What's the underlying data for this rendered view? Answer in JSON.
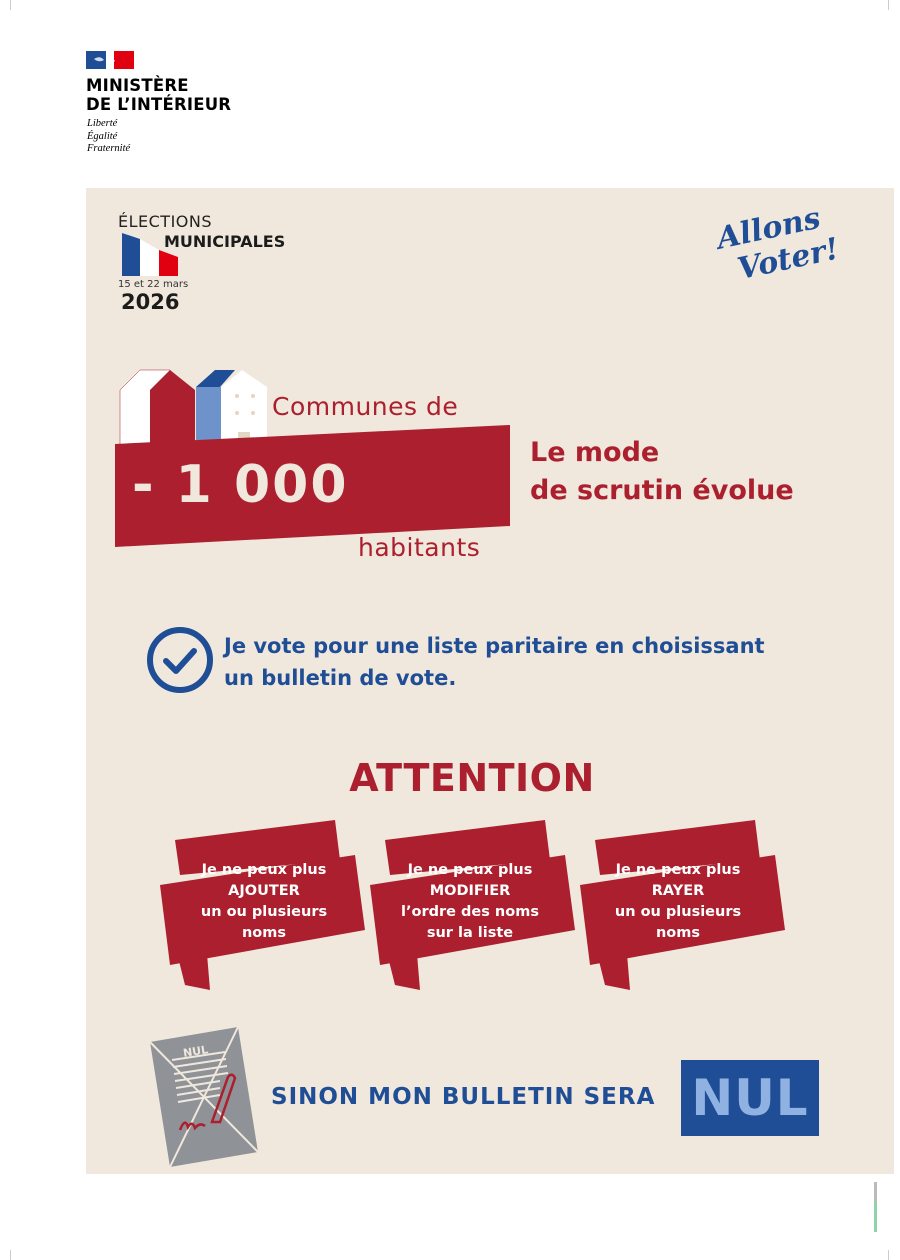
{
  "header": {
    "ministry_line1": "MINISTÈRE",
    "ministry_line2": "DE L’INTÉRIEUR",
    "motto": [
      "Liberté",
      "Égalité",
      "Fraternité"
    ]
  },
  "election": {
    "line1": "ÉLECTIONS",
    "line2": "MUNICIPALES",
    "dates": "15 et 22 mars",
    "year": "2026"
  },
  "slogan": [
    "Allons",
    "Voter!"
  ],
  "communes": {
    "prefix": "Communes de",
    "number": "- 1 000",
    "suffix": "habitants"
  },
  "headline": [
    "Le mode",
    "de scrutin évolue"
  ],
  "vote_statement": [
    "Je vote pour une liste paritaire en choisissant",
    "un bulletin de vote."
  ],
  "attention": "ATTENTION",
  "rules": [
    {
      "lines": [
        "Je ne peux plus",
        "AJOUTER",
        "un ou plusieurs",
        "noms"
      ]
    },
    {
      "lines": [
        "Je ne peux plus",
        "MODIFIER",
        "l’ordre des noms",
        "sur la liste"
      ]
    },
    {
      "lines": [
        "Je ne peux plus",
        "RAYER",
        "un ou plusieurs",
        "noms"
      ]
    }
  ],
  "ballot_label": "NUL",
  "warning": "SINON MON BULLETIN SERA",
  "warning_emphasis": "NUL",
  "colors": {
    "red": "#ab1f2e",
    "blue": "#1f4e96",
    "beige": "#f0e8dc"
  },
  "icons": [
    "marianne-logo",
    "french-flag",
    "houses",
    "check-circle-icon",
    "crossed-ballot-icon"
  ]
}
